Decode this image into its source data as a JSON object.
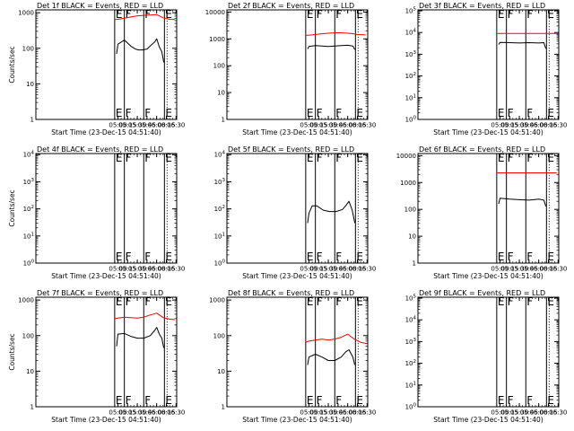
{
  "chart_data": [
    {
      "type": "line",
      "title": "Det 1f BLACK = Events, RED = LLD",
      "xlabel": "Start Time (23-Dec-15 04:51:40)",
      "ylabel": "Counts/sec",
      "xlim": [
        "02:53",
        "06:31"
      ],
      "yscale": "log",
      "ylim": [
        1,
        1200
      ],
      "ytick_labels": [
        "1",
        "10",
        "100",
        "1000"
      ],
      "xtick_labels": [
        "05:00",
        "05:15",
        "05:30",
        "05:45",
        "06:00",
        "06:15",
        "06:30"
      ],
      "event_markers": [
        {
          "time": "04:55",
          "label": "E"
        },
        {
          "time": "05:10",
          "label": "F"
        },
        {
          "time": "05:40",
          "label": "F"
        },
        {
          "time": "06:12",
          "label": "E"
        }
      ],
      "series": [
        {
          "color": "#000000",
          "x": [
            "04:58",
            "05:00",
            "05:10",
            "05:20",
            "05:27",
            "05:32",
            "05:38",
            "05:45",
            "05:52",
            "05:57",
            "06:00",
            "06:04",
            "06:08",
            "06:11"
          ],
          "values": [
            70,
            130,
            170,
            115,
            95,
            90,
            90,
            95,
            125,
            150,
            185,
            110,
            80,
            40
          ]
        },
        {
          "color": "#ff0000",
          "x": [
            "04:55",
            "05:00",
            "05:10",
            "05:20",
            "05:30",
            "05:40",
            "05:50",
            "06:00",
            "06:10",
            "06:20",
            "06:28"
          ],
          "values": [
            640,
            650,
            700,
            760,
            820,
            840,
            860,
            880,
            720,
            650,
            640
          ]
        }
      ]
    },
    {
      "type": "line",
      "title": "Det 2f BLACK = Events, RED = LLD",
      "xlabel": "Start Time (23-Dec-15 04:51:40)",
      "ylabel": "",
      "xlim": [
        "02:53",
        "06:31"
      ],
      "yscale": "log",
      "ylim": [
        1,
        12000
      ],
      "ytick_labels": [
        "1",
        "10",
        "100",
        "1000",
        "10000"
      ],
      "xtick_labels": [
        "05:00",
        "05:15",
        "05:30",
        "05:45",
        "06:00",
        "06:15",
        "06:30"
      ],
      "event_markers": [
        {
          "time": "04:55",
          "label": "E"
        },
        {
          "time": "05:10",
          "label": "F"
        },
        {
          "time": "05:40",
          "label": "F"
        },
        {
          "time": "06:12",
          "label": "E"
        }
      ],
      "series": [
        {
          "color": "#000000",
          "x": [
            "04:58",
            "05:00",
            "05:10",
            "05:20",
            "05:30",
            "05:40",
            "05:50",
            "06:00",
            "06:08",
            "06:11"
          ],
          "values": [
            420,
            520,
            560,
            540,
            520,
            540,
            560,
            580,
            540,
            400
          ]
        },
        {
          "color": "#ff0000",
          "x": [
            "04:55",
            "05:05",
            "05:15",
            "05:25",
            "05:35",
            "05:45",
            "05:55",
            "06:05",
            "06:15",
            "06:28"
          ],
          "values": [
            1350,
            1400,
            1500,
            1600,
            1650,
            1700,
            1650,
            1600,
            1450,
            1400
          ]
        }
      ]
    },
    {
      "type": "line",
      "title": "Det 3f BLACK = Events, RED = LLD",
      "xlabel": "Start Time (23-Dec-15 04:51:40)",
      "ylabel": "",
      "xlim": [
        "02:53",
        "06:31"
      ],
      "yscale": "log",
      "ylim": [
        1,
        110000
      ],
      "ytick_labels": [
        "10^0",
        "10^1",
        "10^2",
        "10^3",
        "10^4",
        "10^5"
      ],
      "xtick_labels": [
        "05:00",
        "05:15",
        "05:30",
        "05:45",
        "06:00",
        "06:15",
        "06:30"
      ],
      "event_markers": [
        {
          "time": "04:55",
          "label": "E"
        },
        {
          "time": "05:10",
          "label": "F"
        },
        {
          "time": "05:40",
          "label": "F"
        },
        {
          "time": "06:12",
          "label": "E"
        }
      ],
      "series": [
        {
          "color": "#000000",
          "x": [
            "04:58",
            "05:00",
            "05:15",
            "05:30",
            "05:45",
            "06:00",
            "06:08",
            "06:11"
          ],
          "values": [
            2800,
            3500,
            3400,
            3300,
            3400,
            3300,
            3400,
            1800
          ]
        },
        {
          "color": "#ff0000",
          "x": [
            "04:55",
            "05:30",
            "06:00",
            "06:28"
          ],
          "values": [
            9000,
            9000,
            9000,
            9000
          ]
        }
      ]
    },
    {
      "type": "line",
      "title": "Det 4f BLACK = Events, RED = LLD",
      "xlabel": "Start Time (23-Dec-15 04:51:40)",
      "ylabel": "Counts/sec",
      "xlim": [
        "02:53",
        "06:31"
      ],
      "yscale": "log",
      "ylim": [
        1,
        11000
      ],
      "ytick_labels": [
        "10^0",
        "10^1",
        "10^2",
        "10^3",
        "10^4"
      ],
      "xtick_labels": [
        "05:00",
        "05:15",
        "05:30",
        "05:45",
        "06:00",
        "06:15",
        "06:30"
      ],
      "event_markers": [
        {
          "time": "04:55",
          "label": "E"
        },
        {
          "time": "05:10",
          "label": "F"
        },
        {
          "time": "05:40",
          "label": "F"
        },
        {
          "time": "06:12",
          "label": "E"
        }
      ],
      "series": []
    },
    {
      "type": "line",
      "title": "Det 5f BLACK = Events, RED = LLD",
      "xlabel": "Start Time (23-Dec-15 04:51:40)",
      "ylabel": "",
      "xlim": [
        "02:53",
        "06:31"
      ],
      "yscale": "log",
      "ylim": [
        1,
        11000
      ],
      "ytick_labels": [
        "10^0",
        "10^1",
        "10^2",
        "10^3",
        "10^4"
      ],
      "xtick_labels": [
        "05:00",
        "05:15",
        "05:30",
        "05:45",
        "06:00",
        "06:15",
        "06:30"
      ],
      "event_markers": [
        {
          "time": "04:55",
          "label": "E"
        },
        {
          "time": "05:10",
          "label": "F"
        },
        {
          "time": "05:40",
          "label": "F"
        },
        {
          "time": "06:12",
          "label": "E"
        }
      ],
      "series": [
        {
          "color": "#000000",
          "x": [
            "04:58",
            "05:00",
            "05:05",
            "05:12",
            "05:22",
            "05:32",
            "05:42",
            "05:52",
            "05:58",
            "06:02",
            "06:07",
            "06:11"
          ],
          "values": [
            30,
            70,
            130,
            130,
            90,
            80,
            80,
            95,
            140,
            190,
            90,
            30
          ]
        }
      ]
    },
    {
      "type": "line",
      "title": "Det 6f BLACK = Events, RED = LLD",
      "xlabel": "Start Time (23-Dec-15 04:51:40)",
      "ylabel": "",
      "xlim": [
        "02:53",
        "06:31"
      ],
      "yscale": "log",
      "ylim": [
        1,
        12000
      ],
      "ytick_labels": [
        "1",
        "10",
        "100",
        "1000",
        "10000"
      ],
      "xtick_labels": [
        "05:00",
        "05:15",
        "05:30",
        "05:45",
        "06:00",
        "06:15",
        "06:30"
      ],
      "event_markers": [
        {
          "time": "04:55",
          "label": "E"
        },
        {
          "time": "05:10",
          "label": "F"
        },
        {
          "time": "05:40",
          "label": "F"
        },
        {
          "time": "06:12",
          "label": "E"
        }
      ],
      "series": [
        {
          "color": "#000000",
          "x": [
            "04:58",
            "05:00",
            "05:15",
            "05:30",
            "05:45",
            "06:00",
            "06:08",
            "06:11"
          ],
          "values": [
            160,
            260,
            240,
            230,
            220,
            240,
            220,
            130
          ]
        },
        {
          "color": "#ff0000",
          "x": [
            "04:55",
            "05:30",
            "06:00",
            "06:28"
          ],
          "values": [
            2300,
            2300,
            2300,
            2300
          ]
        }
      ]
    },
    {
      "type": "line",
      "title": "Det 7f BLACK = Events, RED = LLD",
      "xlabel": "Start Time (23-Dec-15 04:51:40)",
      "ylabel": "Counts/sec",
      "xlim": [
        "02:53",
        "06:31"
      ],
      "yscale": "log",
      "ylim": [
        1,
        1200
      ],
      "ytick_labels": [
        "1",
        "10",
        "100",
        "1000"
      ],
      "xtick_labels": [
        "05:00",
        "05:15",
        "05:30",
        "05:45",
        "06:00",
        "06:15",
        "06:30"
      ],
      "event_markers": [
        {
          "time": "04:55",
          "label": "E"
        },
        {
          "time": "05:10",
          "label": "F"
        },
        {
          "time": "05:40",
          "label": "F"
        },
        {
          "time": "06:12",
          "label": "E"
        }
      ],
      "series": [
        {
          "color": "#000000",
          "x": [
            "04:58",
            "05:00",
            "05:10",
            "05:20",
            "05:30",
            "05:40",
            "05:50",
            "05:57",
            "06:00",
            "06:04",
            "06:08",
            "06:11"
          ],
          "values": [
            50,
            110,
            115,
            95,
            85,
            85,
            100,
            140,
            170,
            110,
            85,
            45
          ]
        },
        {
          "color": "#ff0000",
          "x": [
            "04:55",
            "05:00",
            "05:10",
            "05:20",
            "05:30",
            "05:40",
            "05:50",
            "06:00",
            "06:10",
            "06:20",
            "06:28"
          ],
          "values": [
            300,
            310,
            330,
            320,
            310,
            330,
            380,
            430,
            320,
            290,
            280
          ]
        }
      ]
    },
    {
      "type": "line",
      "title": "Det 8f BLACK = Events, RED = LLD",
      "xlabel": "Start Time (23-Dec-15 04:51:40)",
      "ylabel": "",
      "xlim": [
        "02:53",
        "06:31"
      ],
      "yscale": "log",
      "ylim": [
        1,
        1200
      ],
      "ytick_labels": [
        "1",
        "10",
        "100",
        "1000"
      ],
      "xtick_labels": [
        "05:00",
        "05:15",
        "05:30",
        "05:45",
        "06:00",
        "06:15",
        "06:30"
      ],
      "event_markers": [
        {
          "time": "04:55",
          "label": "E"
        },
        {
          "time": "05:10",
          "label": "F"
        },
        {
          "time": "05:40",
          "label": "F"
        },
        {
          "time": "06:12",
          "label": "E"
        }
      ],
      "series": [
        {
          "color": "#000000",
          "x": [
            "04:58",
            "05:00",
            "05:10",
            "05:20",
            "05:30",
            "05:40",
            "05:50",
            "05:57",
            "06:02",
            "06:08",
            "06:11"
          ],
          "values": [
            15,
            25,
            30,
            25,
            20,
            20,
            25,
            35,
            40,
            25,
            15
          ]
        },
        {
          "color": "#ff0000",
          "x": [
            "04:55",
            "05:00",
            "05:10",
            "05:20",
            "05:30",
            "05:40",
            "05:50",
            "06:00",
            "06:10",
            "06:20",
            "06:28"
          ],
          "values": [
            65,
            70,
            75,
            80,
            75,
            80,
            90,
            110,
            80,
            65,
            60
          ]
        }
      ]
    },
    {
      "type": "line",
      "title": "Det 9f BLACK = Events, RED = LLD",
      "xlabel": "Start Time (23-Dec-15 04:51:40)",
      "ylabel": "",
      "xlim": [
        "02:53",
        "06:31"
      ],
      "yscale": "log",
      "ylim": [
        1,
        110000
      ],
      "ytick_labels": [
        "10^0",
        "10^1",
        "10^2",
        "10^3",
        "10^4",
        "10^5"
      ],
      "xtick_labels": [
        "05:00",
        "05:15",
        "05:30",
        "05:45",
        "06:00",
        "06:15",
        "06:30"
      ],
      "event_markers": [
        {
          "time": "04:55",
          "label": "E"
        },
        {
          "time": "05:10",
          "label": "F"
        },
        {
          "time": "05:40",
          "label": "F"
        },
        {
          "time": "06:12",
          "label": "E"
        }
      ],
      "series": []
    }
  ]
}
